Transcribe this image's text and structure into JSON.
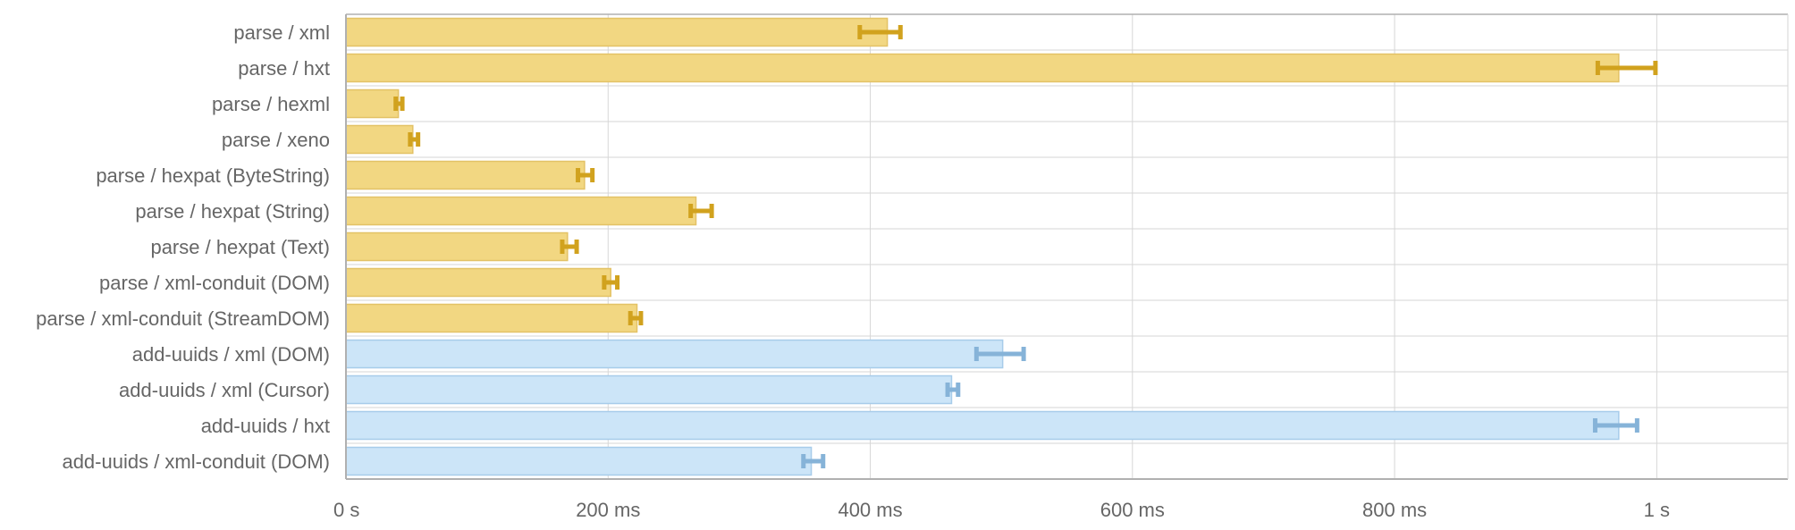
{
  "chart_data": {
    "type": "bar",
    "orientation": "horizontal",
    "unit": "ms",
    "categories": [
      "parse / xml",
      "parse / hxt",
      "parse / hexml",
      "parse / xeno",
      "parse / hexpat (ByteString)",
      "parse / hexpat (String)",
      "parse / hexpat (Text)",
      "parse / xml-conduit (DOM)",
      "parse / xml-conduit (StreamDOM)",
      "add-uuids / xml (DOM)",
      "add-uuids / xml (Cursor)",
      "add-uuids / hxt",
      "add-uuids / xml-conduit (DOM)"
    ],
    "values": [
      413,
      971,
      40,
      51,
      182,
      267,
      169,
      202,
      222,
      501,
      462,
      971,
      355
    ],
    "error_low": [
      392,
      955,
      38,
      49,
      177,
      263,
      165,
      197,
      217,
      481,
      459,
      953,
      349
    ],
    "error_high": [
      423,
      999,
      43,
      55,
      188,
      279,
      176,
      207,
      225,
      517,
      467,
      985,
      364
    ],
    "groups": [
      "parse",
      "parse",
      "parse",
      "parse",
      "parse",
      "parse",
      "parse",
      "parse",
      "parse",
      "add-uuids",
      "add-uuids",
      "add-uuids",
      "add-uuids"
    ],
    "xlim": [
      0,
      1100
    ],
    "x_ticks": [
      {
        "value": 0,
        "label": "0 s"
      },
      {
        "value": 200,
        "label": "200 ms"
      },
      {
        "value": 400,
        "label": "400 ms"
      },
      {
        "value": 600,
        "label": "600 ms"
      },
      {
        "value": 800,
        "label": "800 ms"
      },
      {
        "value": 1000,
        "label": "1 s"
      }
    ],
    "grid": true,
    "colors": {
      "parse": {
        "fill": "#f2d782",
        "stroke": "#e3c266",
        "error": "#d1a21e"
      },
      "add-uuids": {
        "fill": "#cce5f8",
        "stroke": "#a7ccea",
        "error": "#86b3d8"
      },
      "grid": "#d6d6d6",
      "axis": "#b0b0b0",
      "text": "#666666"
    }
  }
}
